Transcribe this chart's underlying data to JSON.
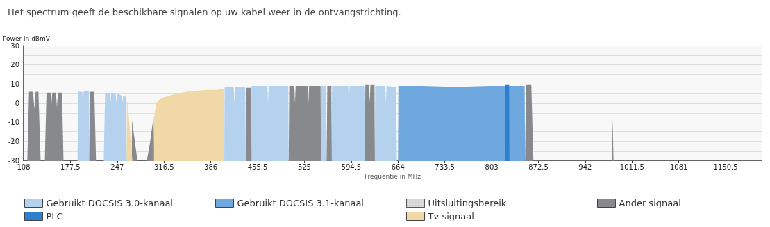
{
  "chart_data": {
    "type": "area",
    "title": "Het spectrum geeft de beschikbare signalen op uw kabel weer in de ontvangstrichting.",
    "xlabel": "Frequentie in MHz",
    "ylabel": "Power in dBmV",
    "xlim": [
      108,
      1204
    ],
    "xticks": [
      108,
      177.5,
      247,
      316.5,
      386,
      455.5,
      525,
      594.5,
      664,
      733.5,
      803,
      872.5,
      942,
      1011.5,
      1081,
      1150.5
    ],
    "ylim": [
      -30,
      30
    ],
    "yticks": [
      -30,
      {
        "value": -25,
        "label": null
      },
      -20,
      {
        "value": -15,
        "label": null
      },
      -10,
      {
        "value": -5,
        "label": null
      },
      0,
      {
        "value": 5,
        "label": null
      },
      10,
      {
        "value": 15,
        "label": null
      },
      20,
      {
        "value": 25,
        "label": null
      },
      30
    ],
    "grid": "y",
    "legend": "bottom",
    "series": [
      {
        "name": "Gebruikt DOCSIS 3.0-kanaal",
        "color": "#b4d2ee",
        "x": [
          188,
          189.5,
          195,
          196,
          197,
          205,
          206,
          227,
          229,
          236,
          237,
          238,
          244.5,
          246,
          247.5,
          254,
          255,
          256,
          260,
          261.5,
          406,
          406.5,
          420,
          421,
          422,
          437,
          438,
          446,
          446.5,
          470,
          471,
          472,
          501,
          501.7,
          549.7,
          550,
          557,
          558,
          565.7,
          566,
          590,
          591,
          592,
          614,
          614.7,
          629.6,
          630,
          645,
          646,
          647,
          661,
          662.3
        ],
        "values": [
          -30,
          6,
          6,
          0,
          6,
          6.5,
          -30,
          -30,
          5.5,
          5,
          0,
          5.5,
          5,
          0,
          5,
          4,
          0,
          4,
          3.5,
          -30,
          -30,
          8.5,
          8.5,
          0,
          8.5,
          8.5,
          -30,
          -30,
          9,
          9,
          0,
          9,
          9,
          -30,
          -30,
          9,
          9,
          -30,
          -30,
          9,
          9,
          0,
          9,
          9,
          -30,
          -30,
          9,
          9,
          0,
          9,
          8.5,
          -30
        ]
      },
      {
        "name": "Gebruikt DOCSIS 3.1-kanaal",
        "color": "#6fa8de",
        "x": [
          664,
          664.5,
          700,
          750,
          800,
          852,
          852.7
        ],
        "values": [
          -30,
          9,
          9,
          8.5,
          9,
          9,
          -30
        ]
      },
      {
        "name": "Uitsluitingsbereik",
        "color": "#dcdcdc"
      },
      {
        "name": "Ander signaal",
        "color": "#87898c",
        "x": [
          113.5,
          116,
          122,
          124,
          126,
          130,
          133.3,
          139.5,
          142,
          148,
          149,
          150.5,
          156,
          157.5,
          159,
          165,
          167.3,
          205.5,
          206.5,
          213,
          215.5,
          268.5,
          269,
          277,
          291,
          296,
          301,
          302,
          438,
          439,
          445.5,
          446.5,
          501.7,
          502.5,
          510,
          511,
          512,
          530,
          531,
          532,
          549,
          549.7,
          558,
          559,
          565,
          565.7,
          614.7,
          615.5,
          621,
          622,
          623,
          629,
          629.6,
          852.7,
          854,
          862,
          865,
          981.5,
          982.7,
          984
        ],
        "values": [
          -30,
          6,
          6,
          -3,
          6,
          6,
          -30,
          -30,
          5.5,
          5.5,
          -2,
          5.5,
          5.5,
          -2,
          5.5,
          5.5,
          -30,
          -30,
          6,
          6,
          -30,
          -30,
          -9,
          -30,
          -30,
          -20,
          -7,
          -30,
          -30,
          8,
          8,
          -30,
          -30,
          9,
          9,
          0,
          9,
          9,
          0,
          9,
          9,
          -30,
          -30,
          9,
          9,
          -30,
          -30,
          9.5,
          9.5,
          0,
          9.5,
          9.5,
          -30,
          -30,
          9.5,
          9.5,
          -30,
          -30,
          -8,
          -30
        ]
      },
      {
        "name": "PLC",
        "color": "#2f7fd0",
        "x": [
          823,
          823.3,
          829,
          829.4
        ],
        "values": [
          -30,
          9.5,
          9.5,
          -30
        ]
      },
      {
        "name": "Tv-signaal",
        "color": "#f0d9a6",
        "x": [
          261,
          261.5,
          263,
          265,
          267,
          269.5,
          301.5,
          302,
          305,
          310,
          315,
          325,
          335,
          350,
          365,
          380,
          395,
          405,
          406
        ],
        "values": [
          -30,
          2,
          -2,
          -10,
          -20,
          -30,
          -30,
          -7,
          0,
          2,
          3,
          4,
          5,
          6,
          6.5,
          7,
          7,
          7.5,
          -30
        ]
      }
    ]
  }
}
